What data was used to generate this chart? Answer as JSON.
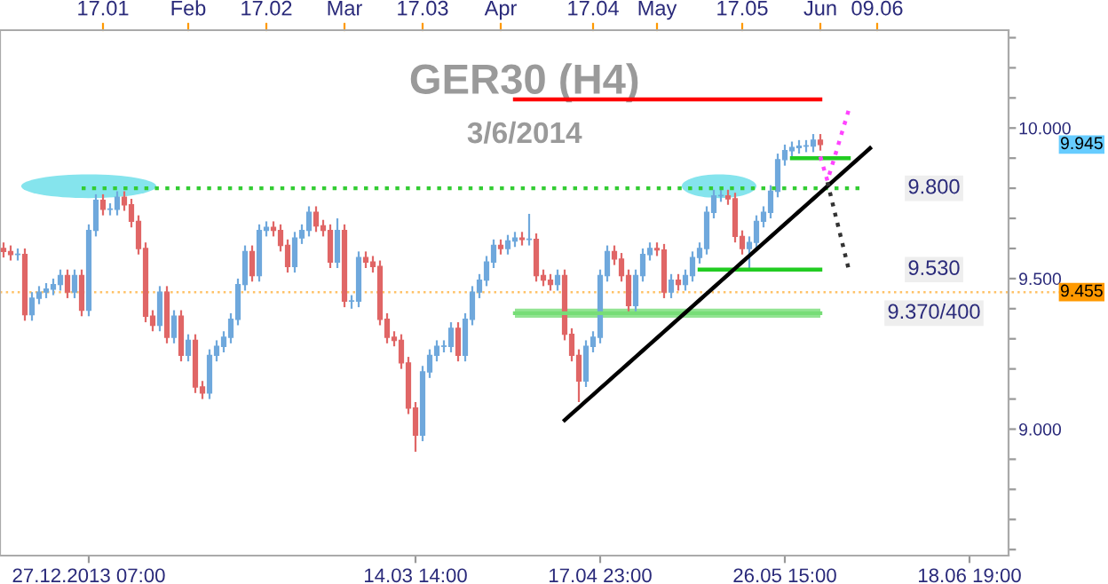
{
  "chart_data": {
    "type": "candlestick",
    "title": "GER30 (H4)",
    "subtitle": "3/6/2014",
    "categories": [
      null,
      null,
      null,
      null,
      null,
      null,
      null,
      null,
      null,
      null,
      null,
      null,
      "27.12.2013 07:00",
      null,
      null,
      null,
      null,
      null,
      null,
      null,
      null,
      null,
      null,
      null,
      null,
      null,
      null,
      null,
      null,
      null,
      null,
      null,
      null,
      null,
      null,
      null,
      null,
      null,
      null,
      null,
      null,
      null,
      null,
      null,
      null,
      null,
      null,
      null,
      null,
      null,
      null,
      null,
      null,
      null,
      null,
      null,
      null,
      null,
      "14.03 14:00",
      null,
      null,
      null,
      null,
      null,
      null,
      null,
      null,
      null,
      null,
      null,
      null,
      null,
      null,
      null,
      null,
      null,
      null,
      null,
      null,
      null,
      null,
      null,
      null,
      null,
      "17.04 23:00",
      null,
      null,
      null,
      null,
      null,
      null,
      null,
      null,
      null,
      null,
      null,
      null,
      null,
      null,
      null,
      null,
      null,
      null,
      null,
      null,
      null,
      null,
      null,
      null,
      null,
      "26.05 15:00",
      null,
      null,
      null,
      null,
      null,
      null,
      null,
      null,
      null,
      null,
      null,
      null,
      null,
      null,
      null,
      null,
      null,
      null,
      null,
      null,
      null,
      null,
      null,
      null,
      null,
      "18.06 19:00",
      null,
      null,
      null,
      null,
      null
    ],
    "ohlc": [
      [
        9.6,
        9.62,
        9.57,
        9.59
      ],
      [
        9.59,
        9.61,
        9.56,
        9.58
      ],
      [
        9.58,
        9.6,
        9.56,
        9.58
      ],
      [
        9.58,
        9.6,
        9.36,
        9.38
      ],
      [
        9.38,
        9.455,
        9.36,
        9.435
      ],
      [
        9.435,
        9.475,
        9.415,
        9.455
      ],
      [
        9.455,
        9.485,
        9.435,
        9.465
      ],
      [
        9.465,
        9.5,
        9.445,
        9.48
      ],
      [
        9.48,
        9.53,
        9.46,
        9.51
      ],
      [
        9.51,
        9.53,
        9.435,
        9.455
      ],
      [
        9.455,
        9.53,
        9.435,
        9.51
      ],
      [
        9.51,
        9.53,
        9.375,
        9.395
      ],
      [
        9.395,
        9.68,
        9.375,
        9.66
      ],
      [
        9.66,
        9.78,
        9.64,
        9.76
      ],
      [
        9.76,
        9.78,
        9.71,
        9.73
      ],
      [
        9.73,
        9.75,
        9.71,
        9.73
      ],
      [
        9.73,
        9.79,
        9.71,
        9.77
      ],
      [
        9.77,
        9.79,
        9.725,
        9.745
      ],
      [
        9.745,
        9.765,
        9.67,
        9.69
      ],
      [
        9.69,
        9.71,
        9.58,
        9.6
      ],
      [
        9.6,
        9.62,
        9.355,
        9.375
      ],
      [
        9.375,
        9.395,
        9.325,
        9.345
      ],
      [
        9.345,
        9.475,
        9.325,
        9.455
      ],
      [
        9.455,
        9.475,
        9.285,
        9.305
      ],
      [
        9.305,
        9.395,
        9.285,
        9.375
      ],
      [
        9.375,
        9.395,
        9.225,
        9.245
      ],
      [
        9.245,
        9.315,
        9.225,
        9.295
      ],
      [
        9.295,
        9.315,
        9.12,
        9.14
      ],
      [
        9.14,
        9.16,
        9.1,
        9.12
      ],
      [
        9.12,
        9.265,
        9.1,
        9.245
      ],
      [
        9.245,
        9.295,
        9.225,
        9.275
      ],
      [
        9.275,
        9.325,
        9.255,
        9.305
      ],
      [
        9.305,
        9.385,
        9.285,
        9.365
      ],
      [
        9.365,
        9.5,
        9.345,
        9.48
      ],
      [
        9.48,
        9.61,
        9.46,
        9.59
      ],
      [
        9.59,
        9.61,
        9.49,
        9.51
      ],
      [
        9.51,
        9.68,
        9.49,
        9.66
      ],
      [
        9.66,
        9.69,
        9.64,
        9.67
      ],
      [
        9.67,
        9.69,
        9.64,
        9.66
      ],
      [
        9.66,
        9.68,
        9.59,
        9.61
      ],
      [
        9.61,
        9.63,
        9.52,
        9.54
      ],
      [
        9.54,
        9.655,
        9.52,
        9.635
      ],
      [
        9.635,
        9.68,
        9.615,
        9.66
      ],
      [
        9.66,
        9.74,
        9.64,
        9.72
      ],
      [
        9.72,
        9.74,
        9.655,
        9.675
      ],
      [
        9.675,
        9.695,
        9.64,
        9.66
      ],
      [
        9.66,
        9.68,
        9.535,
        9.555
      ],
      [
        9.555,
        9.7,
        9.535,
        9.66
      ],
      [
        9.66,
        9.68,
        9.405,
        9.425
      ],
      [
        9.425,
        9.445,
        9.4,
        9.425
      ],
      [
        9.425,
        9.59,
        9.405,
        9.57
      ],
      [
        9.57,
        9.59,
        9.535,
        9.555
      ],
      [
        9.555,
        9.575,
        9.52,
        9.54
      ],
      [
        9.54,
        9.56,
        9.345,
        9.365
      ],
      [
        9.365,
        9.385,
        9.285,
        9.305
      ],
      [
        9.305,
        9.325,
        9.275,
        9.295
      ],
      [
        9.295,
        9.315,
        9.2,
        9.22
      ],
      [
        9.22,
        9.24,
        9.05,
        9.07
      ],
      [
        9.07,
        9.09,
        8.925,
        8.98
      ],
      [
        8.98,
        9.21,
        8.96,
        9.19
      ],
      [
        9.19,
        9.265,
        9.17,
        9.245
      ],
      [
        9.245,
        9.295,
        9.225,
        9.275
      ],
      [
        9.275,
        9.295,
        9.255,
        9.275
      ],
      [
        9.275,
        9.355,
        9.255,
        9.335
      ],
      [
        9.335,
        9.355,
        9.225,
        9.245
      ],
      [
        9.245,
        9.385,
        9.225,
        9.365
      ],
      [
        9.365,
        9.475,
        9.345,
        9.455
      ],
      [
        9.455,
        9.515,
        9.435,
        9.495
      ],
      [
        9.495,
        9.575,
        9.475,
        9.555
      ],
      [
        9.555,
        9.63,
        9.535,
        9.61
      ],
      [
        9.61,
        9.63,
        9.58,
        9.6
      ],
      [
        9.6,
        9.645,
        9.58,
        9.625
      ],
      [
        9.625,
        9.655,
        9.605,
        9.635
      ],
      [
        9.635,
        9.655,
        9.61,
        9.63
      ],
      [
        9.63,
        9.715,
        9.61,
        9.63
      ],
      [
        9.63,
        9.65,
        9.49,
        9.51
      ],
      [
        9.51,
        9.53,
        9.475,
        9.495
      ],
      [
        9.495,
        9.515,
        9.46,
        9.48
      ],
      [
        9.48,
        9.53,
        9.46,
        9.51
      ],
      [
        9.51,
        9.53,
        9.295,
        9.315
      ],
      [
        9.315,
        9.335,
        9.225,
        9.245
      ],
      [
        9.245,
        9.265,
        9.09,
        9.16
      ],
      [
        9.16,
        9.295,
        9.14,
        9.275
      ],
      [
        9.275,
        9.325,
        9.255,
        9.305
      ],
      [
        9.305,
        9.53,
        9.285,
        9.51
      ],
      [
        9.51,
        9.61,
        9.49,
        9.59
      ],
      [
        9.59,
        9.61,
        9.545,
        9.565
      ],
      [
        9.565,
        9.585,
        9.49,
        9.51
      ],
      [
        9.51,
        9.53,
        9.39,
        9.41
      ],
      [
        9.41,
        9.53,
        9.39,
        9.51
      ],
      [
        9.51,
        9.6,
        9.49,
        9.58
      ],
      [
        9.58,
        9.62,
        9.56,
        9.6
      ],
      [
        9.6,
        9.62,
        9.575,
        9.595
      ],
      [
        9.595,
        9.615,
        9.435,
        9.455
      ],
      [
        9.455,
        9.515,
        9.435,
        9.495
      ],
      [
        9.495,
        9.515,
        9.46,
        9.48
      ],
      [
        9.48,
        9.53,
        9.46,
        9.51
      ],
      [
        9.51,
        9.59,
        9.49,
        9.57
      ],
      [
        9.57,
        9.62,
        9.55,
        9.6
      ],
      [
        9.6,
        9.74,
        9.58,
        9.72
      ],
      [
        9.72,
        9.795,
        9.7,
        9.775
      ],
      [
        9.775,
        9.795,
        9.755,
        9.775
      ],
      [
        9.775,
        9.795,
        9.745,
        9.765
      ],
      [
        9.765,
        9.785,
        9.62,
        9.64
      ],
      [
        9.64,
        9.66,
        9.58,
        9.6
      ],
      [
        9.6,
        9.64,
        9.53,
        9.62
      ],
      [
        9.62,
        9.71,
        9.6,
        9.69
      ],
      [
        9.69,
        9.74,
        9.67,
        9.72
      ],
      [
        9.72,
        9.81,
        9.7,
        9.79
      ],
      [
        9.79,
        9.915,
        9.77,
        9.895
      ],
      [
        9.895,
        9.945,
        9.875,
        9.925
      ],
      [
        9.925,
        9.955,
        9.905,
        9.935
      ],
      [
        9.935,
        9.96,
        9.915,
        9.94
      ],
      [
        9.94,
        9.96,
        9.92,
        9.94
      ],
      [
        9.94,
        9.98,
        9.92,
        9.96
      ],
      [
        9.96,
        9.98,
        9.925,
        9.945
      ],
      null,
      null,
      null,
      null,
      null,
      null,
      null,
      null,
      null,
      null,
      null,
      null,
      null,
      null,
      null,
      null,
      null,
      null,
      null,
      null,
      null,
      null,
      null,
      null,
      null,
      null
    ],
    "colors": [
      "#e06666",
      "#e06666",
      "#6fa8dc",
      "#e06666",
      "#6fa8dc",
      "#6fa8dc",
      "#6fa8dc",
      "#6fa8dc",
      "#6fa8dc",
      "#e06666",
      "#6fa8dc",
      "#e06666",
      "#6fa8dc",
      "#6fa8dc",
      "#e06666",
      "#6fa8dc",
      "#6fa8dc",
      "#e06666",
      "#e06666",
      "#e06666",
      "#e06666",
      "#e06666",
      "#6fa8dc",
      "#e06666",
      "#6fa8dc",
      "#e06666",
      "#6fa8dc",
      "#e06666",
      "#e06666",
      "#6fa8dc",
      "#6fa8dc",
      "#6fa8dc",
      "#6fa8dc",
      "#6fa8dc",
      "#6fa8dc",
      "#e06666",
      "#6fa8dc",
      "#6fa8dc",
      "#e06666",
      "#e06666",
      "#e06666",
      "#6fa8dc",
      "#6fa8dc",
      "#6fa8dc",
      "#e06666",
      "#e06666",
      "#e06666",
      "#6fa8dc",
      "#e06666",
      "#6fa8dc",
      "#6fa8dc",
      "#e06666",
      "#e06666",
      "#e06666",
      "#e06666",
      "#e06666",
      "#e06666",
      "#e06666",
      "#e06666",
      "#6fa8dc",
      "#6fa8dc",
      "#6fa8dc",
      "#6fa8dc",
      "#6fa8dc",
      "#e06666",
      "#6fa8dc",
      "#6fa8dc",
      "#6fa8dc",
      "#6fa8dc",
      "#6fa8dc",
      "#e06666",
      "#6fa8dc",
      "#6fa8dc",
      "#e06666",
      "#6fa8dc",
      "#e06666",
      "#e06666",
      "#e06666",
      "#6fa8dc",
      "#e06666",
      "#e06666",
      "#e06666",
      "#6fa8dc",
      "#6fa8dc",
      "#6fa8dc",
      "#6fa8dc",
      "#e06666",
      "#e06666",
      "#e06666",
      "#6fa8dc",
      "#6fa8dc",
      "#6fa8dc",
      "#e06666",
      "#e06666",
      "#6fa8dc",
      "#e06666",
      "#6fa8dc",
      "#6fa8dc",
      "#6fa8dc",
      "#6fa8dc",
      "#6fa8dc",
      "#6fa8dc",
      "#e06666",
      "#e06666",
      "#e06666",
      "#6fa8dc",
      "#6fa8dc",
      "#6fa8dc",
      "#6fa8dc",
      "#6fa8dc",
      "#6fa8dc",
      "#6fa8dc",
      "#6fa8dc",
      "#6fa8dc",
      "#6fa8dc",
      "#e06666",
      null,
      null,
      null,
      null,
      null,
      null,
      null,
      null,
      null,
      null,
      null,
      null,
      null,
      null,
      null,
      null,
      null,
      null,
      null,
      null,
      null,
      null,
      null,
      null,
      null,
      null
    ],
    "series": [
      {
        "type": "line",
        "color": "#ff0000",
        "values": [
          null,
          null,
          null,
          null,
          null,
          null,
          null,
          null,
          null,
          null,
          null,
          null,
          null,
          null,
          null,
          null,
          null,
          null,
          null,
          null,
          null,
          null,
          null,
          null,
          null,
          null,
          null,
          null,
          null,
          null,
          null,
          null,
          null,
          null,
          null,
          null,
          null,
          null,
          null,
          null,
          null,
          null,
          null,
          null,
          null,
          null,
          null,
          null,
          null,
          null,
          null,
          null,
          null,
          null,
          null,
          null,
          null,
          null,
          null,
          null,
          null,
          null,
          null,
          null,
          null,
          null,
          null,
          null,
          null,
          null,
          null,
          null,
          10.095,
          10.095,
          10.095,
          10.095,
          10.095,
          10.095,
          10.095,
          10.095,
          10.095,
          10.095,
          10.095,
          10.095,
          10.095,
          10.095,
          10.095,
          10.095,
          10.095,
          10.095,
          10.095,
          10.095,
          10.095,
          10.095,
          10.095,
          10.095,
          10.095,
          10.095,
          10.095,
          10.095,
          10.095,
          10.095,
          10.095,
          10.095,
          10.095,
          10.095,
          10.095,
          10.095,
          10.095,
          10.095,
          10.095,
          10.095,
          10.095,
          10.095,
          10.095,
          10.095,
          null,
          null,
          null,
          null,
          null,
          null,
          null,
          null,
          null,
          null,
          null,
          null,
          null,
          null,
          null,
          null,
          null,
          null,
          null,
          null,
          null,
          null,
          null,
          null,
          null,
          null
        ]
      },
      {
        "type": "line",
        "name": "9.800",
        "color": "#33cc33",
        "line_style": "dotted",
        "values": [
          null,
          null,
          null,
          null,
          null,
          null,
          null,
          null,
          null,
          null,
          null,
          9.8,
          9.8,
          9.8,
          9.8,
          9.8,
          9.8,
          9.8,
          9.8,
          9.8,
          9.8,
          9.8,
          9.8,
          9.8,
          9.8,
          9.8,
          9.8,
          9.8,
          9.8,
          9.8,
          9.8,
          9.8,
          9.8,
          9.8,
          9.8,
          9.8,
          9.8,
          9.8,
          9.8,
          9.8,
          9.8,
          9.8,
          9.8,
          9.8,
          9.8,
          9.8,
          9.8,
          9.8,
          9.8,
          9.8,
          9.8,
          9.8,
          9.8,
          9.8,
          9.8,
          9.8,
          9.8,
          9.8,
          9.8,
          9.8,
          9.8,
          9.8,
          9.8,
          9.8,
          9.8,
          9.8,
          9.8,
          9.8,
          9.8,
          9.8,
          9.8,
          9.8,
          9.8,
          9.8,
          9.8,
          9.8,
          9.8,
          9.8,
          9.8,
          9.8,
          9.8,
          9.8,
          9.8,
          9.8,
          9.8,
          9.8,
          9.8,
          9.8,
          9.8,
          9.8,
          9.8,
          9.8,
          9.8,
          9.8,
          9.8,
          9.8,
          9.8,
          9.8,
          9.8,
          9.8,
          9.8,
          9.8,
          9.8,
          9.8,
          9.8,
          9.8,
          9.8,
          9.8,
          9.8,
          9.8,
          9.8,
          9.8,
          9.8,
          9.8,
          9.8,
          9.8,
          9.8,
          9.8,
          9.8,
          9.8,
          9.8,
          9.8,
          null,
          null,
          null,
          null,
          null,
          null,
          null,
          null,
          null,
          null,
          null,
          null,
          null,
          null,
          null,
          null,
          null,
          null,
          null,
          null
        ]
      },
      {
        "type": "line",
        "color": "#22cc22",
        "values": [
          null,
          null,
          null,
          null,
          null,
          null,
          null,
          null,
          null,
          null,
          null,
          null,
          null,
          null,
          null,
          null,
          null,
          null,
          null,
          null,
          null,
          null,
          null,
          null,
          null,
          null,
          null,
          null,
          null,
          null,
          null,
          null,
          null,
          null,
          null,
          null,
          null,
          null,
          null,
          null,
          null,
          null,
          null,
          null,
          null,
          null,
          null,
          null,
          null,
          null,
          null,
          null,
          null,
          null,
          null,
          null,
          null,
          null,
          null,
          null,
          null,
          null,
          null,
          null,
          null,
          null,
          null,
          null,
          null,
          null,
          null,
          null,
          null,
          null,
          null,
          null,
          null,
          null,
          null,
          null,
          null,
          null,
          null,
          null,
          null,
          null,
          null,
          null,
          null,
          null,
          null,
          null,
          null,
          null,
          null,
          null,
          null,
          null,
          null,
          null,
          null,
          null,
          null,
          null,
          null,
          null,
          null,
          null,
          null,
          null,
          null,
          9.9,
          9.9,
          9.9,
          9.9,
          9.9,
          9.9,
          9.9,
          9.9,
          9.9,
          null,
          null,
          null,
          null,
          null,
          null,
          null,
          null,
          null,
          null,
          null,
          null,
          null,
          null,
          null,
          null,
          null,
          null,
          null,
          null,
          null,
          null
        ]
      },
      {
        "type": "line",
        "name": "9.530",
        "color": "#22cc22",
        "values": [
          null,
          null,
          null,
          null,
          null,
          null,
          null,
          null,
          null,
          null,
          null,
          null,
          null,
          null,
          null,
          null,
          null,
          null,
          null,
          null,
          null,
          null,
          null,
          null,
          null,
          null,
          null,
          null,
          null,
          null,
          null,
          null,
          null,
          null,
          null,
          null,
          null,
          null,
          null,
          null,
          null,
          null,
          null,
          null,
          null,
          null,
          null,
          null,
          null,
          null,
          null,
          null,
          null,
          null,
          null,
          null,
          null,
          null,
          null,
          null,
          null,
          null,
          null,
          null,
          null,
          null,
          null,
          null,
          null,
          null,
          null,
          null,
          null,
          null,
          null,
          null,
          null,
          null,
          null,
          null,
          null,
          null,
          null,
          null,
          null,
          null,
          null,
          null,
          null,
          null,
          null,
          null,
          null,
          null,
          null,
          null,
          null,
          null,
          9.53,
          9.53,
          9.53,
          9.53,
          9.53,
          9.53,
          9.53,
          9.53,
          9.53,
          9.53,
          9.53,
          9.53,
          9.53,
          9.53,
          9.53,
          9.53,
          9.53,
          9.53,
          null,
          null,
          null,
          null,
          null,
          null,
          null,
          null,
          null,
          null,
          null,
          null,
          null,
          null,
          null,
          null,
          null,
          null,
          null,
          null,
          null,
          null,
          null,
          null,
          null,
          null
        ]
      },
      {
        "type": "line",
        "name": "9.370/400",
        "color": "#77dd77",
        "values": [
          null,
          null,
          null,
          null,
          null,
          null,
          null,
          null,
          null,
          null,
          null,
          null,
          null,
          null,
          null,
          null,
          null,
          null,
          null,
          null,
          null,
          null,
          null,
          null,
          null,
          null,
          null,
          null,
          null,
          null,
          null,
          null,
          null,
          null,
          null,
          null,
          null,
          null,
          null,
          null,
          null,
          null,
          null,
          null,
          null,
          null,
          null,
          null,
          null,
          null,
          null,
          null,
          null,
          null,
          null,
          null,
          null,
          null,
          null,
          null,
          null,
          null,
          null,
          null,
          null,
          null,
          null,
          null,
          null,
          null,
          null,
          null,
          9.385,
          9.385,
          9.385,
          9.385,
          9.385,
          9.385,
          9.385,
          9.385,
          9.385,
          9.385,
          9.385,
          9.385,
          9.385,
          9.385,
          9.385,
          9.385,
          9.385,
          9.385,
          9.385,
          9.385,
          9.385,
          9.385,
          9.385,
          9.385,
          9.385,
          9.385,
          9.385,
          9.385,
          9.385,
          9.385,
          9.385,
          9.385,
          9.385,
          9.385,
          9.385,
          9.385,
          9.385,
          9.385,
          9.385,
          9.385,
          9.385,
          9.385,
          9.385,
          9.385,
          null,
          null,
          null,
          null,
          null,
          null,
          null,
          null,
          null,
          null,
          null,
          null,
          null,
          null,
          null,
          null,
          null,
          null,
          null,
          null,
          null,
          null,
          null,
          null,
          null,
          null
        ],
        "lower": [
          null,
          null,
          null,
          null,
          null,
          null,
          null,
          null,
          null,
          null,
          null,
          null,
          null,
          null,
          null,
          null,
          null,
          null,
          null,
          null,
          null,
          null,
          null,
          null,
          null,
          null,
          null,
          null,
          null,
          null,
          null,
          null,
          null,
          null,
          null,
          null,
          null,
          null,
          null,
          null,
          null,
          null,
          null,
          null,
          null,
          null,
          null,
          null,
          null,
          null,
          null,
          null,
          null,
          null,
          null,
          null,
          null,
          null,
          null,
          null,
          null,
          null,
          null,
          null,
          null,
          null,
          null,
          null,
          null,
          null,
          null,
          null,
          9.37,
          9.37,
          9.37,
          9.37,
          9.37,
          9.37,
          9.37,
          9.37,
          9.37,
          9.37,
          9.37,
          9.37,
          9.37,
          9.37,
          9.37,
          9.37,
          9.37,
          9.37,
          9.37,
          9.37,
          9.37,
          9.37,
          9.37,
          9.37,
          9.37,
          9.37,
          9.37,
          9.37,
          9.37,
          9.37,
          9.37,
          9.37,
          9.37,
          9.37,
          9.37,
          9.37,
          9.37,
          9.37,
          9.37,
          9.37,
          9.37,
          9.37,
          9.37,
          9.37,
          null,
          null,
          null,
          null,
          null,
          null,
          null,
          null,
          null,
          null,
          null,
          null,
          null,
          null,
          null,
          null,
          null,
          null,
          null,
          null,
          null,
          null,
          null,
          null,
          null,
          null
        ],
        "upper": [
          null,
          null,
          null,
          null,
          null,
          null,
          null,
          null,
          null,
          null,
          null,
          null,
          null,
          null,
          null,
          null,
          null,
          null,
          null,
          null,
          null,
          null,
          null,
          null,
          null,
          null,
          null,
          null,
          null,
          null,
          null,
          null,
          null,
          null,
          null,
          null,
          null,
          null,
          null,
          null,
          null,
          null,
          null,
          null,
          null,
          null,
          null,
          null,
          null,
          null,
          null,
          null,
          null,
          null,
          null,
          null,
          null,
          null,
          null,
          null,
          null,
          null,
          null,
          null,
          null,
          null,
          null,
          null,
          null,
          null,
          null,
          null,
          9.4,
          9.4,
          9.4,
          9.4,
          9.4,
          9.4,
          9.4,
          9.4,
          9.4,
          9.4,
          9.4,
          9.4,
          9.4,
          9.4,
          9.4,
          9.4,
          9.4,
          9.4,
          9.4,
          9.4,
          9.4,
          9.4,
          9.4,
          9.4,
          9.4,
          9.4,
          9.4,
          9.4,
          9.4,
          9.4,
          9.4,
          9.4,
          9.4,
          9.4,
          9.4,
          9.4,
          9.4,
          9.4,
          9.4,
          9.4,
          9.4,
          9.4,
          9.4,
          9.4,
          null,
          null,
          null,
          null,
          null,
          null,
          null,
          null,
          null,
          null,
          null,
          null,
          null,
          null,
          null,
          null,
          null,
          null,
          null,
          null,
          null,
          null,
          null,
          null,
          null,
          null
        ]
      },
      {
        "type": "line",
        "color": "#000000",
        "values": [
          null,
          null,
          null,
          null,
          null,
          null,
          null,
          null,
          null,
          null,
          null,
          null,
          null,
          null,
          null,
          null,
          null,
          null,
          null,
          null,
          null,
          null,
          null,
          null,
          null,
          null,
          null,
          null,
          null,
          null,
          null,
          null,
          null,
          null,
          null,
          null,
          null,
          null,
          null,
          null,
          null,
          null,
          null,
          null,
          null,
          null,
          null,
          null,
          null,
          null,
          null,
          null,
          null,
          null,
          null,
          null,
          null,
          null,
          null,
          null,
          null,
          null,
          null,
          null,
          null,
          null,
          null,
          null,
          null,
          null,
          null,
          null,
          null,
          null,
          null,
          null,
          null,
          null,
          null,
          9.03,
          9.051,
          9.072,
          9.093,
          9.114,
          9.135,
          9.156,
          9.177,
          9.198,
          9.219,
          9.24,
          9.261,
          9.282,
          9.303,
          9.324,
          9.345,
          9.366,
          9.387,
          9.408,
          9.429,
          9.45,
          9.471,
          9.492,
          9.513,
          9.534,
          9.555,
          9.576,
          9.597,
          9.618,
          9.639,
          9.66,
          9.681,
          9.702,
          9.723,
          9.744,
          9.765,
          9.786,
          9.807,
          9.828,
          9.849,
          9.87,
          9.891,
          9.912,
          9.933,
          null,
          null,
          null,
          null,
          null,
          null,
          null,
          null,
          null,
          null,
          null,
          null,
          null,
          null,
          null,
          null,
          null,
          null,
          null
        ]
      },
      {
        "type": "line",
        "color": "#ff44ff",
        "line_style": "dotted",
        "values": [
          null,
          null,
          null,
          null,
          null,
          null,
          null,
          null,
          null,
          null,
          null,
          null,
          null,
          null,
          null,
          null,
          null,
          null,
          null,
          null,
          null,
          null,
          null,
          null,
          null,
          null,
          null,
          null,
          null,
          null,
          null,
          null,
          null,
          null,
          null,
          null,
          null,
          null,
          null,
          null,
          null,
          null,
          null,
          null,
          null,
          null,
          null,
          null,
          null,
          null,
          null,
          null,
          null,
          null,
          null,
          null,
          null,
          null,
          null,
          null,
          null,
          null,
          null,
          null,
          null,
          null,
          null,
          null,
          null,
          null,
          null,
          null,
          null,
          null,
          null,
          null,
          null,
          null,
          null,
          null,
          null,
          null,
          null,
          null,
          null,
          null,
          null,
          null,
          null,
          null,
          null,
          null,
          null,
          null,
          null,
          null,
          null,
          null,
          null,
          null,
          null,
          null,
          null,
          null,
          null,
          null,
          null,
          null,
          null,
          null,
          null,
          null,
          null,
          null,
          null,
          9.905,
          9.825,
          9.903,
          9.982,
          10.06,
          null,
          null,
          null,
          null,
          null,
          null,
          null,
          null,
          null,
          null,
          null,
          null,
          null,
          null,
          null,
          null,
          null,
          null,
          null,
          null,
          null,
          null
        ]
      },
      {
        "type": "line",
        "color": "#333333",
        "line_style": "dotted",
        "values": [
          null,
          null,
          null,
          null,
          null,
          null,
          null,
          null,
          null,
          null,
          null,
          null,
          null,
          null,
          null,
          null,
          null,
          null,
          null,
          null,
          null,
          null,
          null,
          null,
          null,
          null,
          null,
          null,
          null,
          null,
          null,
          null,
          null,
          null,
          null,
          null,
          null,
          null,
          null,
          null,
          null,
          null,
          null,
          null,
          null,
          null,
          null,
          null,
          null,
          null,
          null,
          null,
          null,
          null,
          null,
          null,
          null,
          null,
          null,
          null,
          null,
          null,
          null,
          null,
          null,
          null,
          null,
          null,
          null,
          null,
          null,
          null,
          null,
          null,
          null,
          null,
          null,
          null,
          null,
          null,
          null,
          null,
          null,
          null,
          null,
          null,
          null,
          null,
          null,
          null,
          null,
          null,
          null,
          null,
          null,
          null,
          null,
          null,
          null,
          null,
          null,
          null,
          null,
          null,
          null,
          null,
          null,
          null,
          null,
          null,
          null,
          null,
          null,
          null,
          null,
          null,
          9.82,
          9.723,
          9.627,
          9.53,
          null,
          null,
          null,
          null,
          null,
          null,
          null,
          null,
          null,
          null,
          null,
          null,
          null,
          null,
          null,
          null,
          null,
          null,
          null,
          null,
          null,
          null
        ]
      }
    ],
    "ylim": [
      8.58,
      10.325
    ],
    "yticks": [
      {
        "value": 8.6,
        "label": null
      },
      {
        "value": 8.7,
        "label": null
      },
      {
        "value": 8.8,
        "label": null
      },
      {
        "value": 8.9,
        "label": null
      },
      {
        "value": 9.0,
        "label": "9.000"
      },
      {
        "value": 9.1,
        "label": null
      },
      {
        "value": 9.2,
        "label": null
      },
      {
        "value": 9.3,
        "label": null
      },
      {
        "value": 9.4,
        "label": null
      },
      {
        "value": 9.5,
        "label": "9.500"
      },
      {
        "value": 9.6,
        "label": null
      },
      {
        "value": 9.7,
        "label": null
      },
      {
        "value": 9.8,
        "label": null
      },
      {
        "value": 9.9,
        "label": null
      },
      {
        "value": 10.0,
        "label": "10.000"
      },
      {
        "value": 10.1,
        "label": null
      },
      {
        "value": 10.2,
        "label": null
      },
      {
        "value": 10.3,
        "label": null
      }
    ],
    "ref_lines": [
      {
        "axis": "y",
        "value": 9.455,
        "label": "9.455",
        "color": "#ff9900",
        "line_style": "dotted"
      }
    ],
    "annotations": [
      "9.945",
      "17.01",
      "Feb",
      "17.02",
      "Mar",
      "17.03",
      "Apr",
      "17.04",
      "May",
      "17.05",
      "Jun",
      "09.06"
    ],
    "grid": false,
    "legend": false
  }
}
